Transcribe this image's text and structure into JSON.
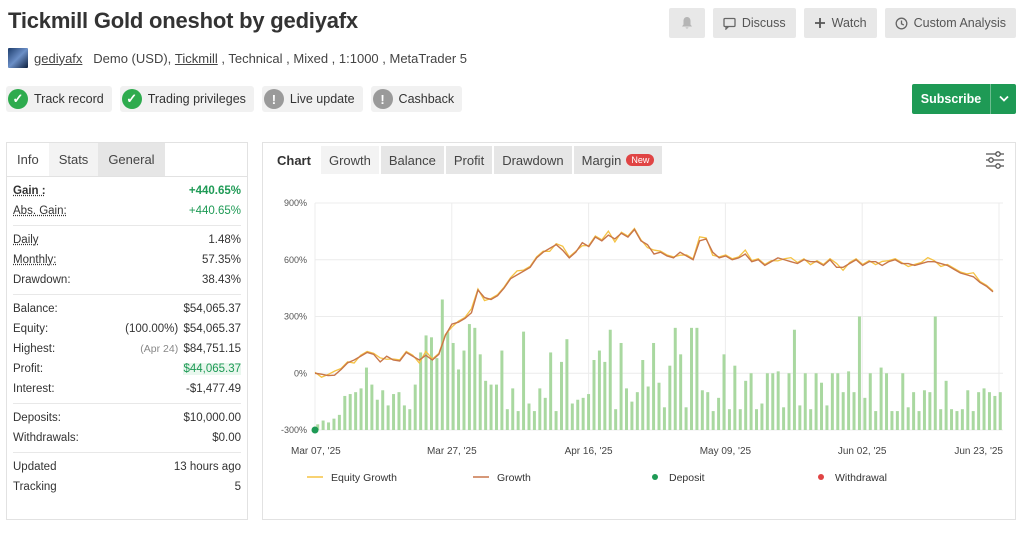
{
  "header": {
    "title": "Tickmill Gold oneshot by gediyafx",
    "actions": {
      "discuss": "Discuss",
      "watch": "Watch",
      "custom_analysis": "Custom Analysis"
    }
  },
  "meta": {
    "username": "gediyafx",
    "account": "Demo (USD),",
    "broker": "Tickmill",
    "details": " , Technical , Mixed , 1:1000 , MetaTrader 5"
  },
  "badges": [
    {
      "label": "Track record",
      "status": "ok"
    },
    {
      "label": "Trading privileges",
      "status": "ok"
    },
    {
      "label": "Live update",
      "status": "warn"
    },
    {
      "label": "Cashback",
      "status": "warn"
    }
  ],
  "subscribe_label": "Subscribe",
  "left_tabs": [
    "Info",
    "Stats",
    "General"
  ],
  "stats": {
    "gain": {
      "label": "Gain :",
      "value": "+440.65%"
    },
    "abs_gain": {
      "label": "Abs. Gain:",
      "value": "+440.65%"
    },
    "daily": {
      "label": "Daily",
      "value": "1.48%"
    },
    "monthly": {
      "label": "Monthly:",
      "value": "57.35%"
    },
    "drawdown": {
      "label": "Drawdown:",
      "value": "38.43%"
    },
    "balance": {
      "label": "Balance:",
      "value": "$54,065.37"
    },
    "equity": {
      "label": "Equity:",
      "prefix": "(100.00%)",
      "value": "$54,065.37"
    },
    "highest": {
      "label": "Highest:",
      "prefix": "(Apr 24)",
      "value": "$84,751.15"
    },
    "profit": {
      "label": "Profit:",
      "value": "$44,065.37"
    },
    "interest": {
      "label": "Interest:",
      "value": "-$1,477.49"
    },
    "deposits": {
      "label": "Deposits:",
      "value": "$10,000.00"
    },
    "withdrawals": {
      "label": "Withdrawals:",
      "value": "$0.00"
    },
    "updated": {
      "label": "Updated",
      "value": "13 hours ago"
    },
    "tracking": {
      "label": "Tracking",
      "value": "5"
    }
  },
  "chart_tabs": [
    "Chart",
    "Growth",
    "Balance",
    "Profit",
    "Drawdown",
    "Margin"
  ],
  "new_badge": "New",
  "colors": {
    "equity": "#f5c242",
    "growth": "#c8764a",
    "bars": "#a9d8a0",
    "deposit": "#1e9a55",
    "withdrawal": "#e04444"
  },
  "chart_data": {
    "type": "line",
    "ylim": [
      -300,
      900
    ],
    "yticks": [
      "900%",
      "600%",
      "300%",
      "0%",
      "-300%"
    ],
    "yticks_values": [
      900,
      600,
      300,
      0,
      -300
    ],
    "xticks": [
      "Mar 07, '25",
      "Mar 27, '25",
      "Apr 16, '25",
      "May 09, '25",
      "Jun 02, '25",
      "Jun 23, '25"
    ],
    "legend": [
      "Equity Growth",
      "Growth",
      "Deposit",
      "Withdrawal"
    ],
    "growth": [
      0,
      -5,
      -12,
      -10,
      20,
      55,
      70,
      90,
      110,
      100,
      60,
      90,
      70,
      65,
      110,
      90,
      70,
      95,
      70,
      100,
      200,
      260,
      270,
      290,
      320,
      440,
      400,
      390,
      410,
      450,
      500,
      520,
      540,
      560,
      610,
      640,
      660,
      680,
      650,
      610,
      640,
      690,
      670,
      720,
      700,
      730,
      710,
      740,
      720,
      760,
      700,
      680,
      630,
      640,
      620,
      610,
      640,
      620,
      600,
      700,
      710,
      640,
      610,
      620,
      600,
      610,
      630,
      590,
      600,
      570,
      590,
      610,
      600,
      590,
      580,
      600,
      590,
      590,
      570,
      600,
      560,
      560,
      580,
      600,
      570,
      590,
      590,
      570,
      590,
      600,
      580,
      580,
      570,
      580,
      590,
      590,
      580,
      570,
      550,
      530,
      520,
      510,
      480,
      460,
      430
    ],
    "bars": [
      -270,
      -250,
      -260,
      -240,
      -220,
      -120,
      -110,
      -100,
      -80,
      30,
      -60,
      -140,
      -90,
      -170,
      -110,
      -100,
      -170,
      -190,
      -60,
      110,
      200,
      190,
      80,
      390,
      220,
      160,
      20,
      120,
      260,
      240,
      100,
      -40,
      -60,
      -60,
      120,
      -190,
      -80,
      -200,
      220,
      -160,
      -200,
      -80,
      -130,
      110,
      -200,
      60,
      180,
      -160,
      -140,
      -130,
      -110,
      70,
      120,
      60,
      230,
      -190,
      160,
      -80,
      -150,
      -100,
      70,
      -70,
      160,
      -50,
      -180,
      40,
      240,
      100,
      -180,
      240,
      240,
      -90,
      -100,
      -200,
      -130,
      100,
      -190,
      40,
      -190,
      -40,
      0,
      -190,
      -160,
      0,
      0,
      10,
      -180,
      0,
      230,
      -170,
      0,
      -190,
      0,
      -50,
      -170,
      0,
      0,
      -100,
      10,
      -100,
      300,
      -130,
      0,
      -200,
      30,
      0,
      -200,
      -200,
      0,
      -180,
      -100,
      -200,
      -90,
      -100,
      300,
      -190,
      -40,
      -190,
      -200,
      -190,
      -90,
      -200,
      -100,
      -80,
      -100,
      -120,
      -100
    ]
  }
}
